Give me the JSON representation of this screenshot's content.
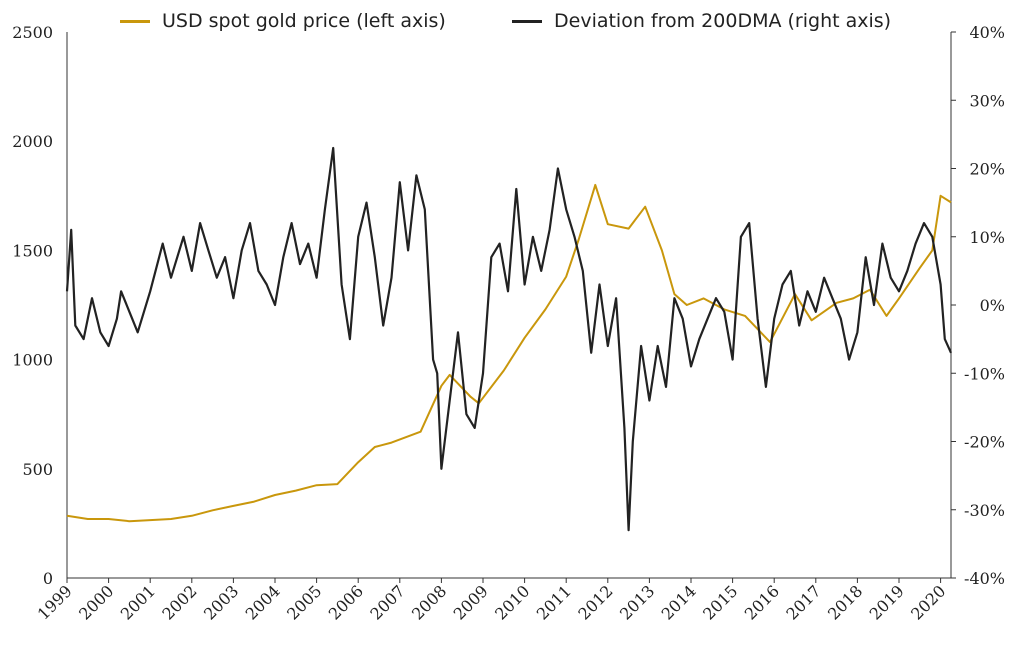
{
  "chart_data": {
    "type": "line",
    "title": "",
    "legend_position": "top",
    "grid": false,
    "x_range": [
      1999.0,
      2020.25
    ],
    "x_ticks": [
      "1999",
      "2000",
      "2001",
      "2002",
      "2003",
      "2004",
      "2005",
      "2006",
      "2007",
      "2008",
      "2009",
      "2010",
      "2011",
      "2012",
      "2013",
      "2014",
      "2015",
      "2016",
      "2017",
      "2018",
      "2019",
      "2020"
    ],
    "y_left": {
      "range": [
        0,
        2500
      ],
      "ticks": [
        "0",
        "500",
        "1000",
        "1500",
        "2000",
        "2500"
      ]
    },
    "y_right": {
      "range": [
        -40,
        40
      ],
      "ticks": [
        "-40%",
        "-30%",
        "-20%",
        "-10%",
        "0%",
        "10%",
        "20%",
        "30%",
        "40%"
      ]
    },
    "colors": {
      "gold": "#C9970C",
      "deviation": "#222222"
    },
    "series": [
      {
        "name": "USD spot gold price (left axis)",
        "axis": "left",
        "x": [
          1999.0,
          1999.5,
          2000.0,
          2000.5,
          2001.0,
          2001.5,
          2002.0,
          2002.5,
          2003.0,
          2003.5,
          2004.0,
          2004.5,
          2005.0,
          2005.5,
          2006.0,
          2006.4,
          2006.8,
          2007.5,
          2008.0,
          2008.2,
          2008.7,
          2008.9,
          2009.5,
          2010.0,
          2010.5,
          2011.0,
          2011.3,
          2011.7,
          2012.0,
          2012.5,
          2012.9,
          2013.3,
          2013.6,
          2013.9,
          2014.3,
          2014.8,
          2015.3,
          2015.9,
          2016.5,
          2016.9,
          2017.5,
          2017.9,
          2018.3,
          2018.7,
          2019.0,
          2019.5,
          2019.8,
          2020.0,
          2020.25
        ],
        "values": [
          285,
          270,
          270,
          260,
          265,
          270,
          285,
          310,
          330,
          350,
          380,
          400,
          425,
          430,
          530,
          600,
          620,
          670,
          880,
          930,
          830,
          800,
          950,
          1100,
          1230,
          1380,
          1550,
          1800,
          1620,
          1600,
          1700,
          1500,
          1300,
          1250,
          1280,
          1230,
          1200,
          1080,
          1300,
          1180,
          1260,
          1280,
          1320,
          1200,
          1280,
          1420,
          1500,
          1750,
          1720
        ]
      },
      {
        "name": "Deviation from 200DMA (right axis)",
        "axis": "right",
        "x": [
          1999.0,
          1999.1,
          1999.2,
          1999.4,
          1999.6,
          1999.8,
          2000.0,
          2000.2,
          2000.3,
          2000.5,
          2000.7,
          2001.0,
          2001.3,
          2001.5,
          2001.8,
          2002.0,
          2002.2,
          2002.4,
          2002.6,
          2002.8,
          2003.0,
          2003.2,
          2003.4,
          2003.6,
          2003.8,
          2004.0,
          2004.2,
          2004.4,
          2004.6,
          2004.8,
          2005.0,
          2005.2,
          2005.4,
          2005.6,
          2005.8,
          2006.0,
          2006.2,
          2006.4,
          2006.6,
          2006.8,
          2007.0,
          2007.2,
          2007.4,
          2007.6,
          2007.8,
          2007.9,
          2008.0,
          2008.2,
          2008.4,
          2008.6,
          2008.8,
          2009.0,
          2009.2,
          2009.4,
          2009.6,
          2009.8,
          2010.0,
          2010.2,
          2010.4,
          2010.6,
          2010.8,
          2011.0,
          2011.2,
          2011.4,
          2011.6,
          2011.8,
          2012.0,
          2012.2,
          2012.4,
          2012.5,
          2012.6,
          2012.8,
          2013.0,
          2013.2,
          2013.4,
          2013.6,
          2013.8,
          2014.0,
          2014.2,
          2014.4,
          2014.6,
          2014.8,
          2015.0,
          2015.2,
          2015.4,
          2015.6,
          2015.8,
          2016.0,
          2016.2,
          2016.4,
          2016.6,
          2016.8,
          2017.0,
          2017.2,
          2017.4,
          2017.6,
          2017.8,
          2018.0,
          2018.2,
          2018.4,
          2018.6,
          2018.8,
          2019.0,
          2019.2,
          2019.4,
          2019.6,
          2019.8,
          2020.0,
          2020.1,
          2020.25
        ],
        "values": [
          2,
          11,
          -3,
          -5,
          1,
          -4,
          -6,
          -2,
          2,
          -1,
          -4,
          2,
          9,
          4,
          10,
          5,
          12,
          8,
          4,
          7,
          1,
          8,
          12,
          5,
          3,
          0,
          7,
          12,
          6,
          9,
          4,
          14,
          23,
          3,
          -5,
          10,
          15,
          7,
          -3,
          4,
          18,
          8,
          19,
          14,
          -8,
          -10,
          -24,
          -14,
          -4,
          -16,
          -18,
          -10,
          7,
          9,
          2,
          17,
          3,
          10,
          5,
          11,
          20,
          14,
          10,
          5,
          -7,
          3,
          -6,
          1,
          -18,
          -33,
          -20,
          -6,
          -14,
          -6,
          -12,
          1,
          -2,
          -9,
          -5,
          -2,
          1,
          -1,
          -8,
          10,
          12,
          -2,
          -12,
          -2,
          3,
          5,
          -3,
          2,
          -1,
          4,
          1,
          -2,
          -8,
          -4,
          7,
          0,
          9,
          4,
          2,
          5,
          9,
          12,
          10,
          3,
          -5,
          -7
        ]
      }
    ]
  }
}
